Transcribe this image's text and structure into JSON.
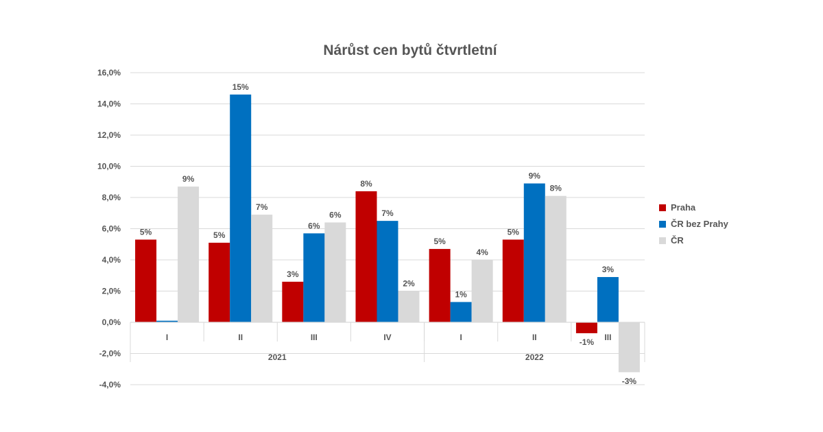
{
  "chart_data": {
    "type": "bar",
    "title": "Nárůst cen bytů čtvrtletní",
    "xlabel": "",
    "ylabel": "",
    "ylim": [
      -4,
      16
    ],
    "y_step": 2,
    "y_tick_format": "0.0%",
    "grid": true,
    "legend_position": "right",
    "categories": [
      "I",
      "II",
      "III",
      "IV",
      "I",
      "II",
      "III"
    ],
    "groups": [
      {
        "label": "2021",
        "count": 4
      },
      {
        "label": "2022",
        "count": 3
      }
    ],
    "series": [
      {
        "name": "Praha",
        "color": "#C00000",
        "values": [
          5.3,
          5.1,
          2.6,
          8.4,
          4.7,
          5.3,
          -0.7
        ],
        "labels": [
          "5%",
          "5%",
          "3%",
          "8%",
          "5%",
          "5%",
          "-1%"
        ]
      },
      {
        "name": "ČR bez Prahy",
        "color": "#0070C0",
        "values": [
          0.1,
          14.6,
          5.7,
          6.5,
          1.3,
          8.9,
          2.9
        ],
        "labels": [
          "",
          "15%",
          "6%",
          "7%",
          "1%",
          "9%",
          "3%"
        ]
      },
      {
        "name": "ČR",
        "color": "#D9D9D9",
        "values": [
          8.7,
          6.9,
          6.4,
          2.0,
          4.0,
          8.1,
          -3.2
        ],
        "labels": [
          "9%",
          "7%",
          "6%",
          "2%",
          "4%",
          "8%",
          "-3%"
        ]
      }
    ]
  }
}
